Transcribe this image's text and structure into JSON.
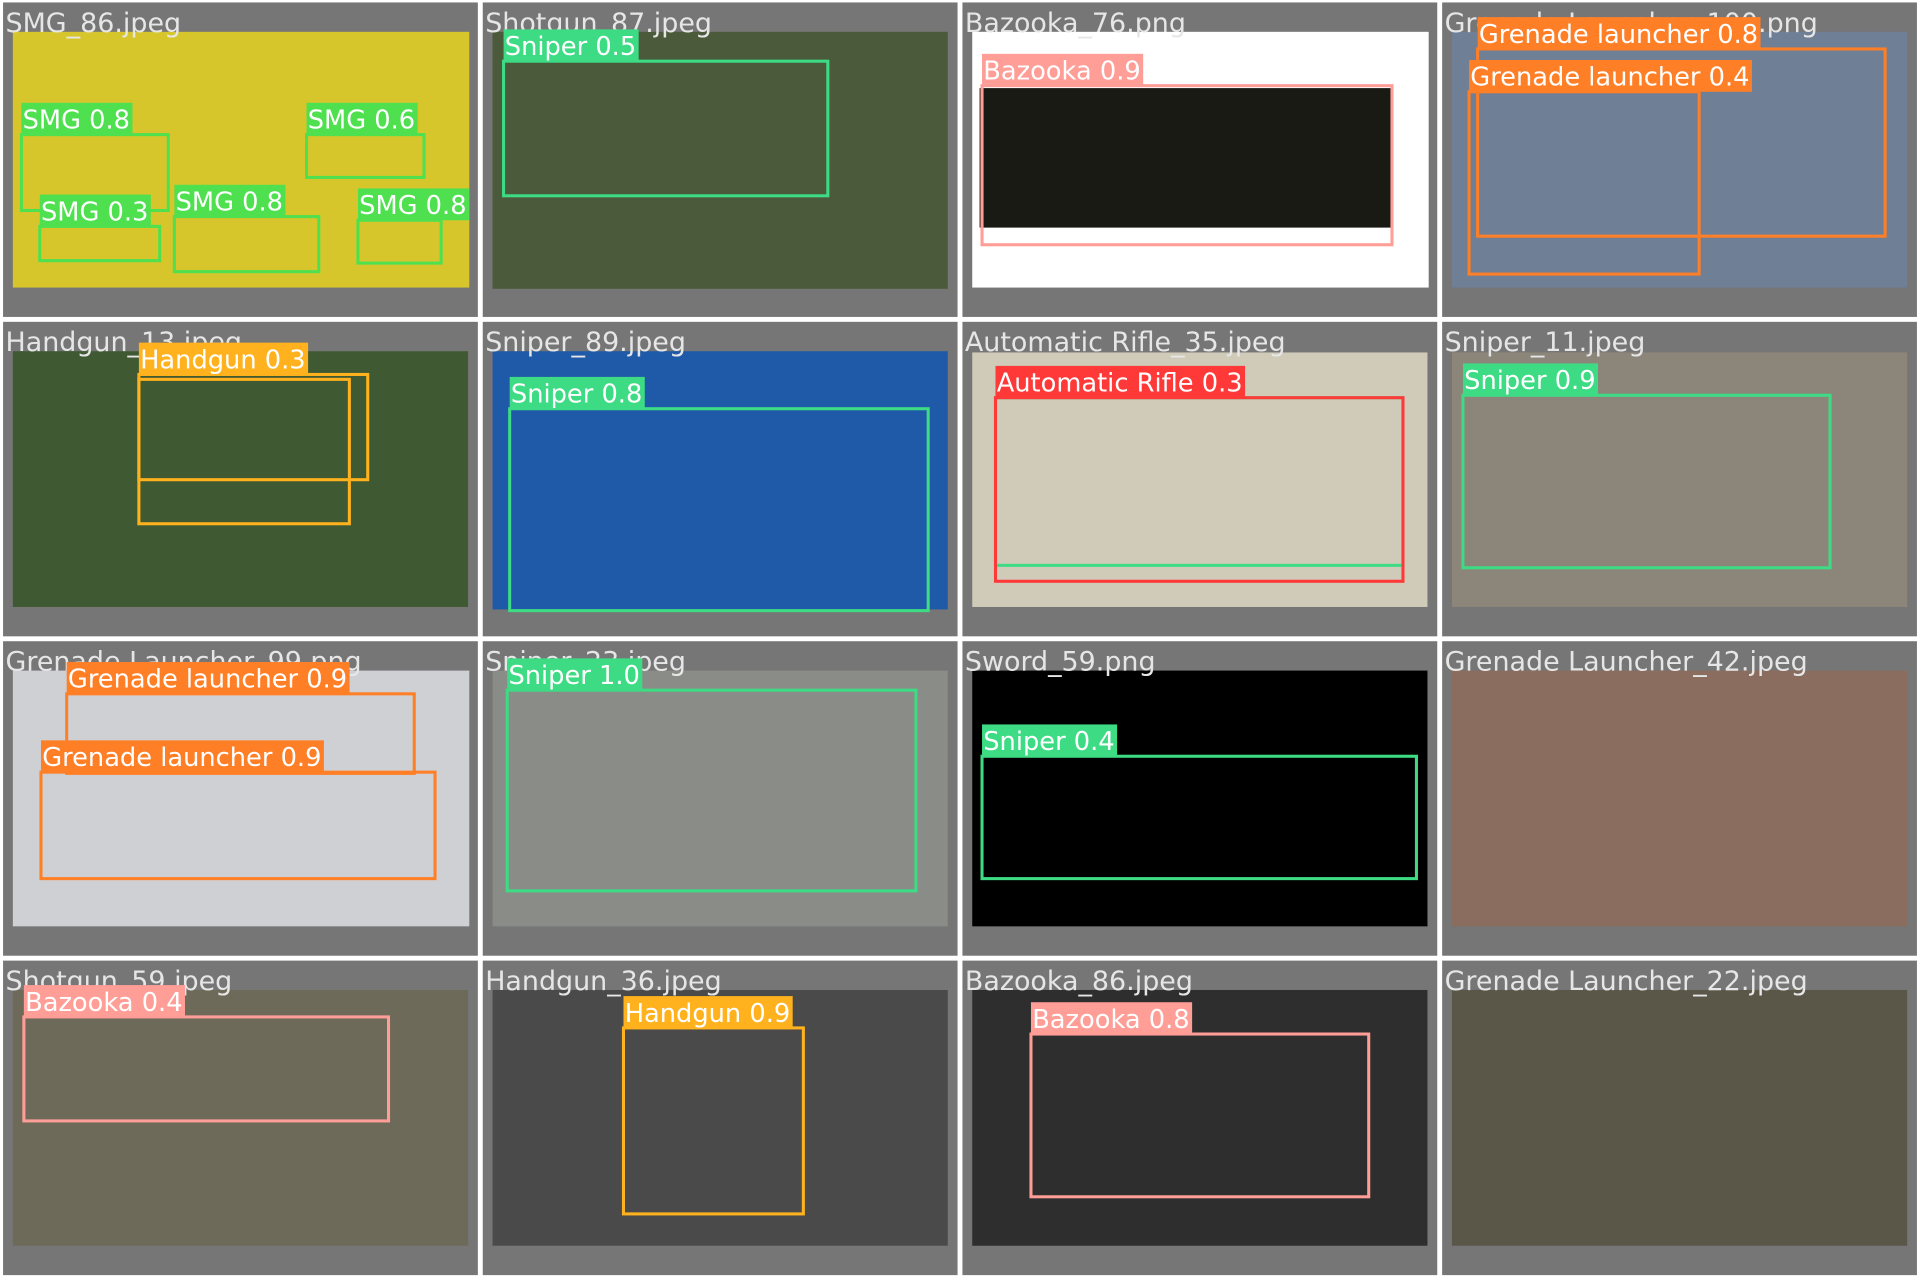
{
  "tiles": [
    {
      "filename": "SMG_86.jpeg",
      "detections": [
        {
          "label": "SMG 0.8"
        },
        {
          "label": "SMG 0.6"
        },
        {
          "label": "SMG 0.3"
        },
        {
          "label": "SMG 0.8"
        },
        {
          "label": "SMG 0.8"
        }
      ]
    },
    {
      "filename": "Shotgun_87.jpeg",
      "detections": [
        {
          "label": "Sniper 0.5"
        }
      ]
    },
    {
      "filename": "Bazooka_76.png",
      "detections": [
        {
          "label": "Bazooka 0.9"
        }
      ]
    },
    {
      "filename": "Grenade Launcher_100.png",
      "detections": [
        {
          "label": "Grenade launcher 0.8"
        },
        {
          "label": "Grenade launcher 0.4"
        }
      ]
    },
    {
      "filename": "Handgun_13.jpeg",
      "detections": [
        {
          "label": "Handgun 0.3"
        }
      ]
    },
    {
      "filename": "Sniper_89.jpeg",
      "detections": [
        {
          "label": "Sniper 0.8"
        }
      ]
    },
    {
      "filename": "Automatic Rifle_35.jpeg",
      "detections": [
        {
          "label": "Automatic Rifle 0.3"
        }
      ]
    },
    {
      "filename": "Sniper_11.jpeg",
      "detections": [
        {
          "label": "Sniper 0.9"
        }
      ]
    },
    {
      "filename": "Grenade Launcher_99.png",
      "detections": [
        {
          "label": "Grenade launcher 0.9"
        },
        {
          "label": "Grenade launcher 0.9"
        }
      ]
    },
    {
      "filename": "Sniper_23.jpeg",
      "detections": [
        {
          "label": "Sniper 1.0"
        }
      ]
    },
    {
      "filename": "Sword_59.png",
      "detections": [
        {
          "label": "Sniper 0.4"
        }
      ]
    },
    {
      "filename": "Grenade Launcher_42.jpeg",
      "detections": []
    },
    {
      "filename": "Shotgun_59.jpeg",
      "detections": [
        {
          "label": "Bazooka 0.4"
        }
      ]
    },
    {
      "filename": "Handgun_36.jpeg",
      "detections": [
        {
          "label": "Handgun 0.9"
        }
      ]
    },
    {
      "filename": "Bazooka_86.jpeg",
      "detections": [
        {
          "label": "Bazooka 0.8"
        }
      ]
    },
    {
      "filename": "Grenade Launcher_22.jpeg",
      "detections": []
    }
  ]
}
